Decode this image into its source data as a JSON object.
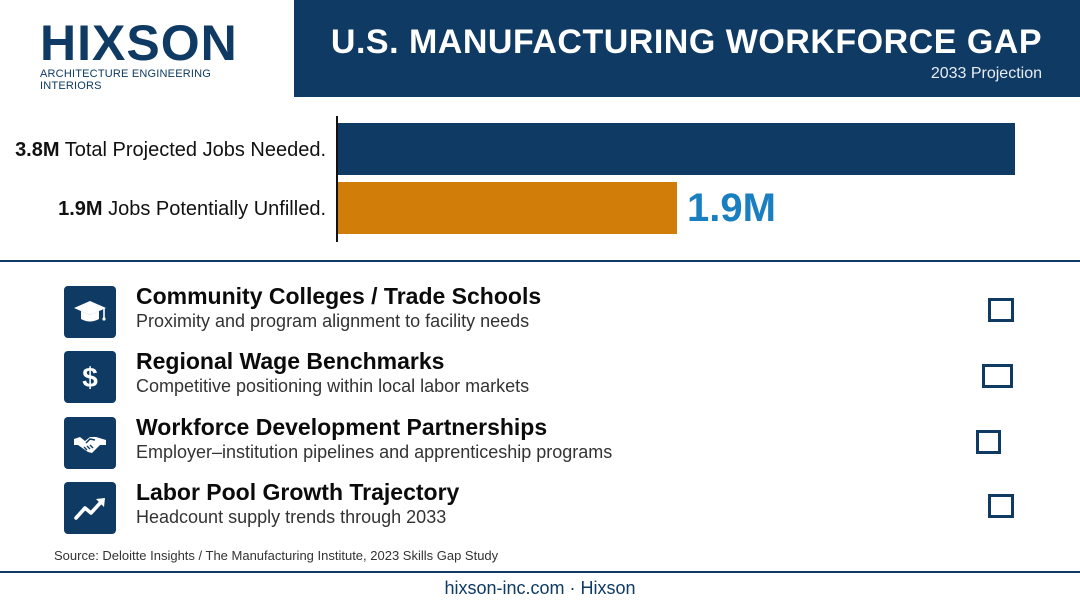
{
  "header": {
    "logo_word": "HIXSON",
    "logo_tagline": "ARCHITECTURE ENGINEERING INTERIORS",
    "title": "U.S. MANUFACTURING WORKFORCE GAP",
    "subtitle": "2033 Projection"
  },
  "chart_data": {
    "type": "bar",
    "orientation": "horizontal",
    "categories": [
      "3.8M Total Projected Jobs Needed.",
      "1.9M Jobs Potentially Unfilled."
    ],
    "values": [
      3.8,
      1.9
    ],
    "value_unit": "M",
    "bar_colors": [
      "#0e3a63",
      "#d17d0a"
    ],
    "labels": [
      {
        "bold": "3.8M",
        "text": " Total Projected Jobs Needed."
      },
      {
        "bold": "1.9M",
        "text": " Jobs Potentially Unfilled."
      }
    ],
    "data_labels": [
      "",
      "1.9M"
    ],
    "data_label_color": "#1a7fc1",
    "xlim": [
      0,
      3.8
    ],
    "title": "",
    "xlabel": "",
    "ylabel": ""
  },
  "checklist": {
    "items": [
      {
        "title": "Community Colleges / Trade Schools",
        "subtitle": "Proximity and program alignment to facility needs",
        "icon": "graduation-cap-icon",
        "checked": false
      },
      {
        "title": "Regional Wage Benchmarks",
        "subtitle": "Competitive positioning within local labor markets",
        "icon": "dollar-icon",
        "checked": false
      },
      {
        "title": "Workforce Development Partnerships",
        "subtitle": "Employer–institution pipelines and apprenticeship programs",
        "icon": "handshake-icon",
        "checked": false
      },
      {
        "title": "Labor Pool Growth Trajectory",
        "subtitle": "Headcount supply trends through 2033",
        "icon": "trend-up-icon",
        "checked": false
      }
    ]
  },
  "source": "Source: Deloitte Insights / The Manufacturing Institute, 2023 Skills Gap Study",
  "footer": "hixson-inc.com · Hixson",
  "colors": {
    "navy": "#0e3a63",
    "orange": "#d17d0a",
    "accent_blue": "#1a7fc1"
  }
}
